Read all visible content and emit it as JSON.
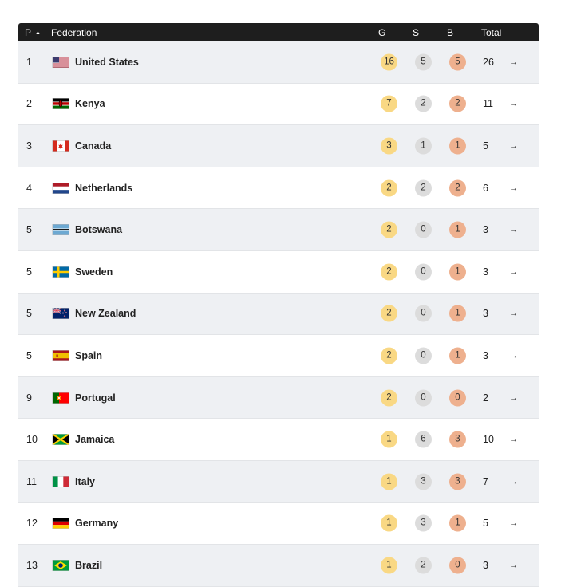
{
  "header": {
    "pos": "P",
    "federation": "Federation",
    "gold": "G",
    "silver": "S",
    "bronze": "B",
    "total": "Total"
  },
  "colors": {
    "header_bg": "#1e1e1e",
    "gold": "#f9d884",
    "silver": "#dcdcdc",
    "bronze": "#eeb08e",
    "row_alt": "#eef0f3"
  },
  "rows": [
    {
      "pos": "1",
      "name": "United States",
      "flag": "us-flag-icon",
      "g": "16",
      "s": "5",
      "b": "5",
      "total": "26"
    },
    {
      "pos": "2",
      "name": "Kenya",
      "flag": "kenya-flag-icon",
      "g": "7",
      "s": "2",
      "b": "2",
      "total": "11"
    },
    {
      "pos": "3",
      "name": "Canada",
      "flag": "canada-flag-icon",
      "g": "3",
      "s": "1",
      "b": "1",
      "total": "5"
    },
    {
      "pos": "4",
      "name": "Netherlands",
      "flag": "netherlands-flag-icon",
      "g": "2",
      "s": "2",
      "b": "2",
      "total": "6"
    },
    {
      "pos": "5",
      "name": "Botswana",
      "flag": "botswana-flag-icon",
      "g": "2",
      "s": "0",
      "b": "1",
      "total": "3"
    },
    {
      "pos": "5",
      "name": "Sweden",
      "flag": "sweden-flag-icon",
      "g": "2",
      "s": "0",
      "b": "1",
      "total": "3"
    },
    {
      "pos": "5",
      "name": "New Zealand",
      "flag": "new-zealand-flag-icon",
      "g": "2",
      "s": "0",
      "b": "1",
      "total": "3"
    },
    {
      "pos": "5",
      "name": "Spain",
      "flag": "spain-flag-icon",
      "g": "2",
      "s": "0",
      "b": "1",
      "total": "3"
    },
    {
      "pos": "9",
      "name": "Portugal",
      "flag": "portugal-flag-icon",
      "g": "2",
      "s": "0",
      "b": "0",
      "total": "2"
    },
    {
      "pos": "10",
      "name": "Jamaica",
      "flag": "jamaica-flag-icon",
      "g": "1",
      "s": "6",
      "b": "3",
      "total": "10"
    },
    {
      "pos": "11",
      "name": "Italy",
      "flag": "italy-flag-icon",
      "g": "1",
      "s": "3",
      "b": "3",
      "total": "7"
    },
    {
      "pos": "12",
      "name": "Germany",
      "flag": "germany-flag-icon",
      "g": "1",
      "s": "3",
      "b": "1",
      "total": "5"
    },
    {
      "pos": "13",
      "name": "Brazil",
      "flag": "brazil-flag-icon",
      "g": "1",
      "s": "2",
      "b": "0",
      "total": "3"
    }
  ]
}
